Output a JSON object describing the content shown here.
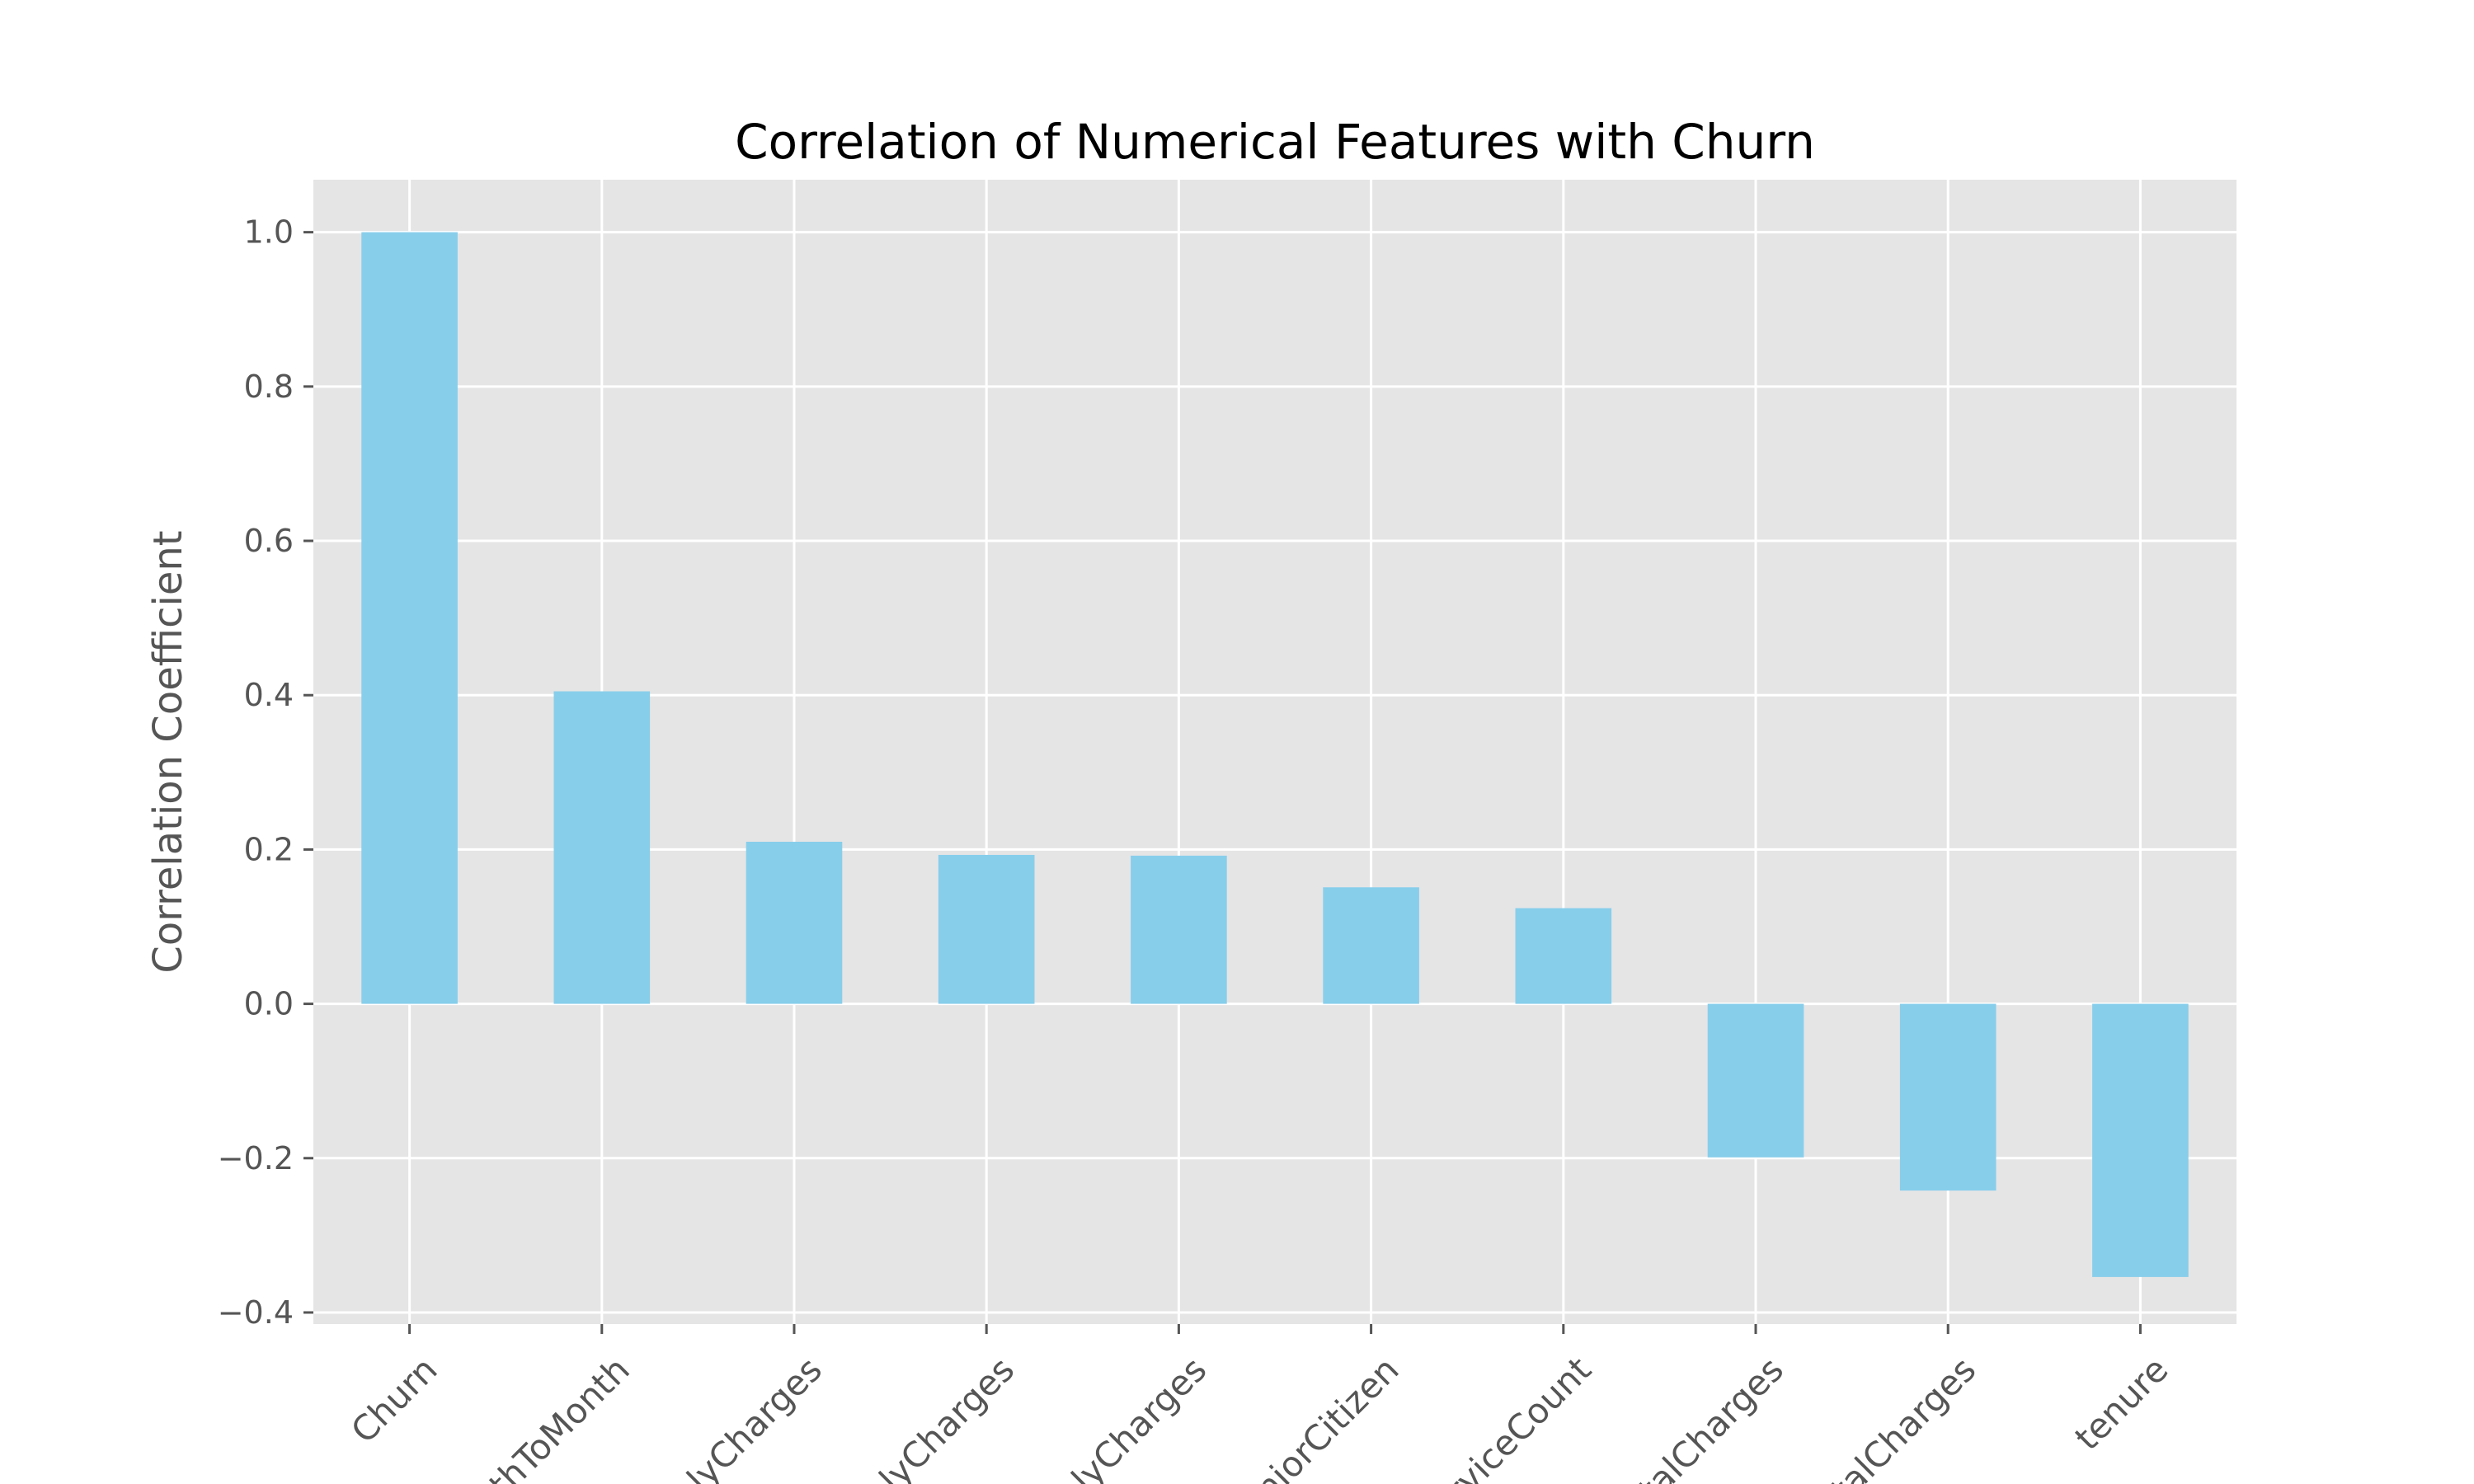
{
  "chart_data": {
    "type": "bar",
    "title": "Correlation of Numerical Features with Churn",
    "ylabel": "Correlation Coefficient",
    "xlabel": "",
    "categories": [
      "Churn",
      "thToMonth",
      "hlyCharges",
      "hlyCharges",
      "hlyCharges",
      "niorCitizen",
      "rviceCount",
      "talCharges",
      "talCharges",
      "tenure"
    ],
    "values": [
      1.0,
      0.405,
      0.21,
      0.193,
      0.192,
      0.151,
      0.124,
      -0.199,
      -0.242,
      -0.354
    ],
    "ylim": [
      -0.415,
      1.068
    ],
    "yticks": [
      -0.4,
      -0.2,
      0.0,
      0.2,
      0.4,
      0.6,
      0.8,
      1.0
    ],
    "ytick_labels": [
      "−0.4",
      "−0.2",
      "0.0",
      "0.2",
      "0.4",
      "0.6",
      "0.8",
      "1.0"
    ],
    "grid": true,
    "colors": {
      "bar": "#87ceeb",
      "background": "#e5e5e5",
      "grid": "#ffffff"
    }
  }
}
